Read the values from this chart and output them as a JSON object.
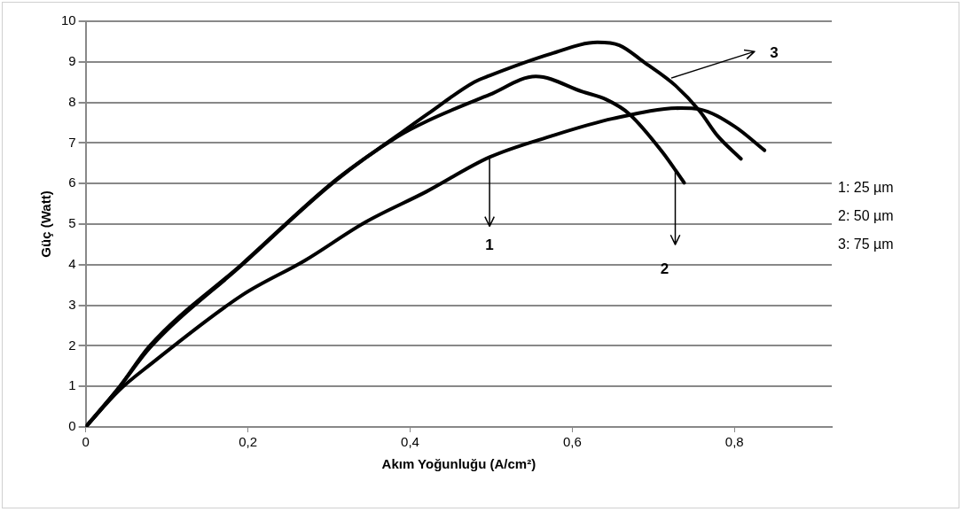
{
  "chart_data": {
    "type": "line",
    "xlabel": "Akım Yoğunluğu (A/cm²)",
    "ylabel": "Güç (Watt)",
    "xlim": [
      0,
      0.92
    ],
    "xticks": [
      0,
      {
        "value": 0.2,
        "label": "0,2"
      },
      {
        "value": 0.4,
        "label": "0,4"
      },
      {
        "value": 0.6,
        "label": "0,6"
      },
      {
        "value": 0.8,
        "label": "0,8"
      }
    ],
    "ylim": [
      0,
      10
    ],
    "yticks": [
      0,
      1,
      2,
      3,
      4,
      5,
      6,
      7,
      8,
      9,
      10
    ],
    "grid": "y",
    "legend": false,
    "marker": "none",
    "line_style": "solid",
    "series": [
      {
        "color": "#000000",
        "x": [
          0,
          0.041,
          0.079,
          0.193,
          0.27,
          0.345,
          0.42,
          0.498,
          0.574,
          0.65,
          0.734,
          0.757,
          0.8,
          0.837
        ],
        "values": [
          0,
          0.9,
          1.53,
          3.25,
          4.1,
          5.05,
          5.8,
          6.65,
          7.17,
          7.6,
          7.86,
          7.83,
          7.41,
          6.82
        ]
      },
      {
        "color": "#000000",
        "x": [
          0,
          0.041,
          0.079,
          0.193,
          0.307,
          0.384,
          0.422,
          0.498,
          0.555,
          0.613,
          0.642,
          0.67,
          0.711,
          0.738
        ],
        "values": [
          0,
          0.97,
          1.95,
          4.0,
          6.05,
          7.15,
          7.55,
          8.19,
          8.64,
          8.26,
          8.07,
          7.72,
          6.78,
          6.02
        ]
      },
      {
        "color": "#000000",
        "x": [
          0,
          0.041,
          0.079,
          0.193,
          0.307,
          0.384,
          0.422,
          0.479,
          0.498,
          0.574,
          0.631,
          0.658,
          0.688,
          0.727,
          0.757,
          0.779,
          0.808
        ],
        "values": [
          0,
          0.97,
          2.0,
          4.02,
          6.07,
          7.18,
          7.72,
          8.5,
          8.66,
          9.2,
          9.48,
          9.41,
          9.0,
          8.42,
          7.79,
          7.18,
          6.61
        ]
      }
    ],
    "annotations": [
      {
        "text": "1",
        "x": 0.498,
        "y": 6.65
      },
      {
        "text": "2",
        "x": 0.727,
        "y": 6.33
      },
      {
        "text": "3",
        "x": 0.722,
        "y": 8.6
      },
      "1: 25 µm",
      "2: 50 µm",
      "3: 75 µm"
    ]
  }
}
